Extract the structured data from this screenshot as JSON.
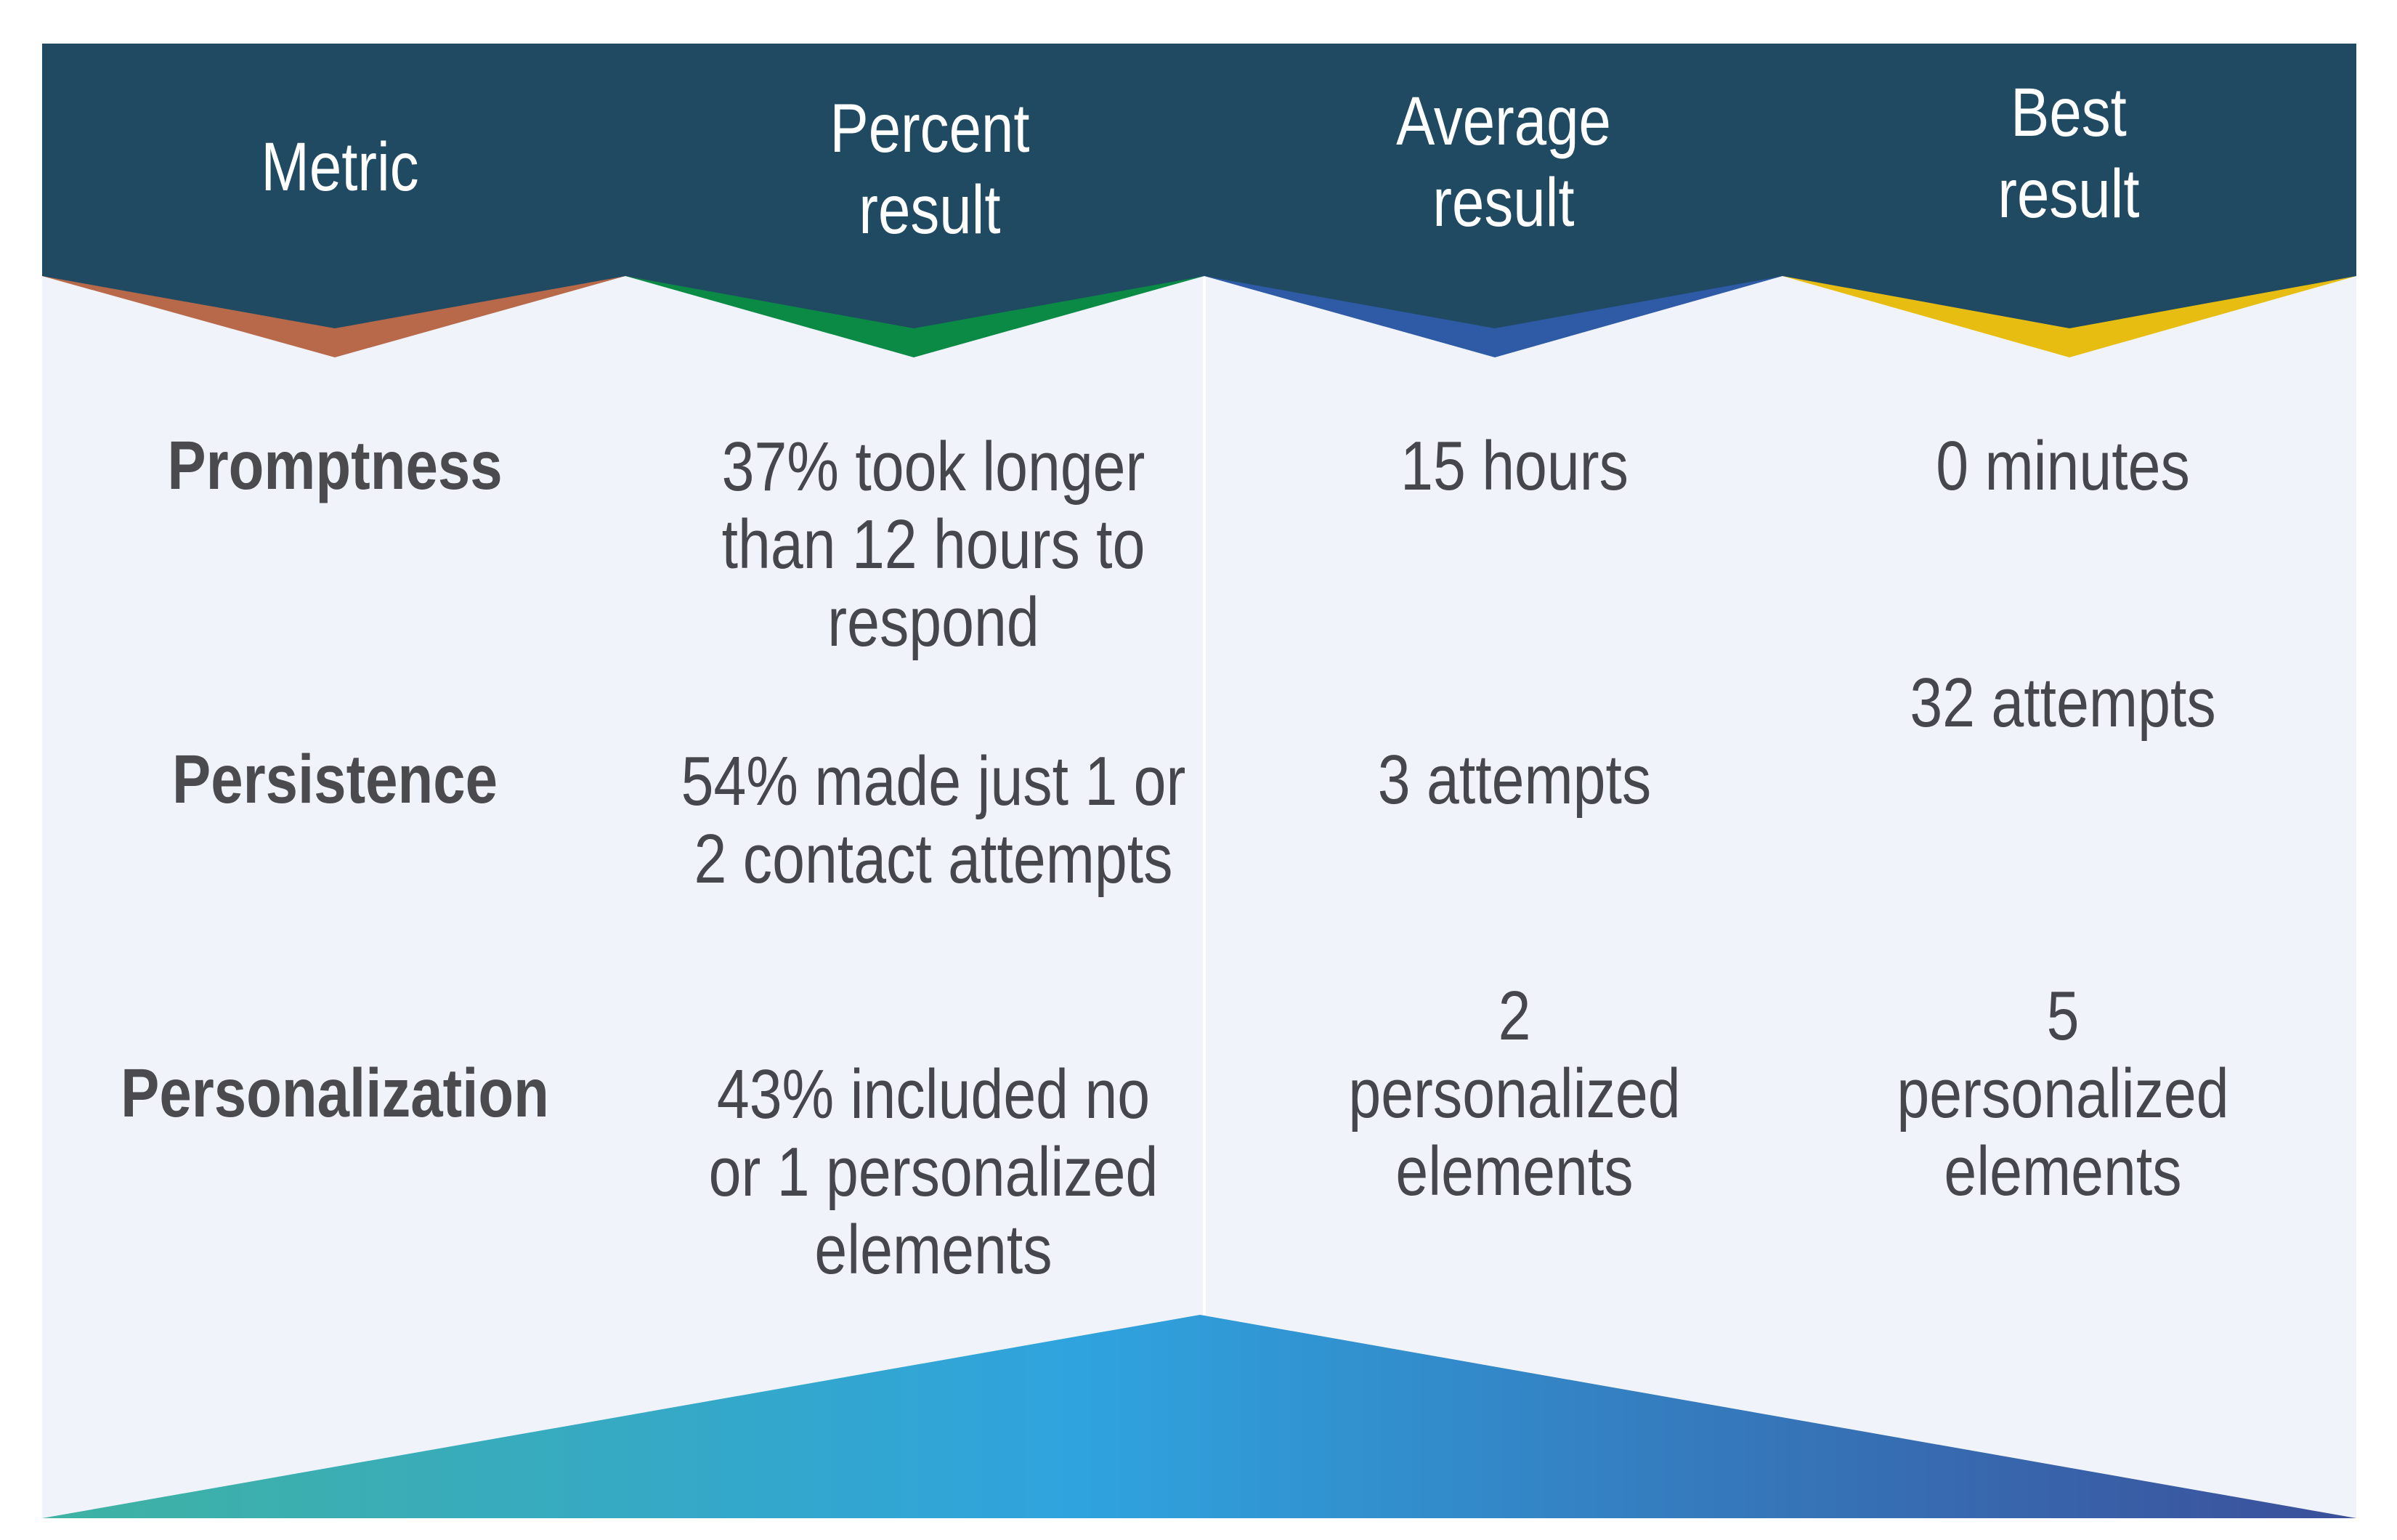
{
  "headers": {
    "metric": "Metric",
    "percent": "Percent\nresult",
    "average": "Average\nresult",
    "best": "Best\nresult"
  },
  "rows": [
    {
      "metric": "Promptness",
      "percent": "37% took longer\nthan 12 hours to\nrespond",
      "average": "15 hours",
      "best": "0 minutes"
    },
    {
      "metric": "Persistence",
      "percent": "54% made just 1 or\n2 contact attempts",
      "average": "3 attempts",
      "best": "32 attempts"
    },
    {
      "metric": "Personalization",
      "percent": "43% included no\nor 1 personalized\nelements",
      "average": "2\npersonalized\nelements",
      "best": "5\npersonalized\nelements"
    }
  ],
  "colors": {
    "header_bg": "#1f4a62",
    "body_bg": "#f0f4fa",
    "accent_metric": "#b8694a",
    "accent_percent": "#0a8a45",
    "accent_average": "#2e5aa6",
    "accent_best": "#e8bd12",
    "bottom_gradient": [
      "#3fb2a2",
      "#2fa3de",
      "#3b4f9a"
    ]
  }
}
